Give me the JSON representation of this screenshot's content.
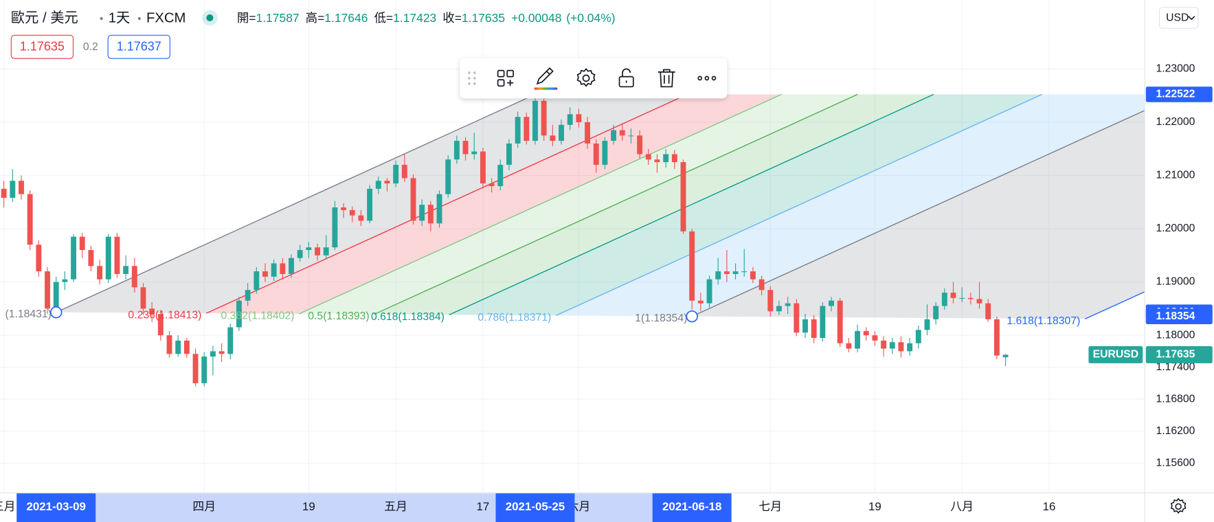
{
  "header": {
    "symbol": "歐元 / 美元",
    "interval": "1天",
    "exchange": "FXCM",
    "open_label": "開=",
    "high_label": "高=",
    "low_label": "低=",
    "close_label": "收=",
    "change": "+0.00048",
    "change_pct": "(+0.04%)",
    "bid": 1.17635,
    "spread": 0.2,
    "ask": 1.17637,
    "currency": "USD"
  },
  "chart_data": {
    "type": "candlestick",
    "ticker": "EURUSD",
    "categories": [
      "三月",
      null,
      null,
      null,
      null,
      null,
      null,
      null,
      null,
      null,
      null,
      null,
      null,
      null,
      null,
      null,
      null,
      null,
      null,
      null,
      null,
      null,
      null,
      "四月",
      null,
      null,
      null,
      null,
      null,
      null,
      null,
      null,
      null,
      null,
      null,
      "19",
      null,
      null,
      null,
      null,
      null,
      null,
      null,
      null,
      null,
      "五月",
      null,
      null,
      null,
      null,
      null,
      null,
      null,
      null,
      null,
      "17",
      null,
      null,
      null,
      null,
      null,
      null,
      null,
      null,
      null,
      null,
      "六月",
      null,
      null,
      null,
      null,
      null,
      null,
      null,
      null,
      null,
      null,
      null,
      null,
      null,
      null,
      null,
      null,
      null,
      null,
      null,
      null,
      null,
      "七月",
      null,
      null,
      null,
      null,
      null,
      null,
      null,
      null,
      null,
      null,
      null,
      "19",
      null,
      null,
      null,
      null,
      null,
      null,
      null,
      null,
      null,
      "八月",
      null,
      null,
      null,
      null,
      null,
      null,
      null,
      null,
      null,
      "16"
    ],
    "open": [
      1.2075,
      1.2058,
      1.209,
      1.2065,
      1.197,
      1.192,
      1.185,
      1.19,
      1.1905,
      1.1985,
      1.196,
      1.193,
      1.1905,
      1.1985,
      1.1915,
      1.193,
      1.189,
      1.185,
      1.184,
      1.18,
      1.1765,
      1.179,
      1.1765,
      1.171,
      1.176,
      1.177,
      1.1765,
      1.1815,
      1.1865,
      1.1885,
      1.192,
      1.191,
      1.1935,
      1.1915,
      1.1945,
      1.196,
      1.1965,
      1.195,
      1.1965,
      1.204,
      1.2035,
      1.2025,
      1.2015,
      1.2075,
      1.209,
      1.2085,
      1.212,
      1.2095,
      1.2015,
      1.2045,
      1.201,
      1.2065,
      1.213,
      1.2165,
      1.214,
      1.2145,
      1.2085,
      1.208,
      1.212,
      1.216,
      1.221,
      1.2165,
      1.224,
      1.2175,
      1.2165,
      1.2195,
      1.2215,
      1.22,
      1.216,
      1.212,
      1.2165,
      1.2185,
      1.2175,
      1.2175,
      1.214,
      1.213,
      1.2125,
      1.214,
      1.2125,
      1.1995,
      1.1865,
      1.186,
      1.1905,
      1.192,
      1.1915,
      1.192,
      1.192,
      1.1905,
      1.1885,
      1.1845,
      1.1855,
      1.186,
      1.1805,
      1.183,
      1.1795,
      1.1855,
      1.1865,
      1.1785,
      1.1775,
      1.1808,
      1.18,
      1.179,
      1.1775,
      1.1787,
      1.177,
      1.1785,
      1.181,
      1.183,
      1.1855,
      1.188,
      1.187,
      1.187,
      1.1868,
      1.186,
      1.183,
      1.17587,
      null,
      null,
      null,
      null,
      null
    ],
    "high": [
      1.209,
      1.2112,
      1.21,
      1.2072,
      1.1978,
      1.1928,
      1.191,
      1.192,
      1.199,
      1.1992,
      1.1968,
      1.1942,
      1.199,
      1.1992,
      1.195,
      1.1945,
      1.1898,
      1.1862,
      1.1848,
      1.1808,
      1.18,
      1.1795,
      1.1775,
      1.1768,
      1.178,
      1.1785,
      1.1822,
      1.1872,
      1.1898,
      1.1928,
      1.1935,
      1.1942,
      1.1945,
      1.1952,
      1.197,
      1.1975,
      1.1972,
      1.1988,
      1.2052,
      1.2048,
      1.2042,
      1.2035,
      1.2082,
      1.2098,
      1.2095,
      1.2128,
      1.214,
      1.2102,
      1.2055,
      1.2052,
      1.2072,
      1.2138,
      1.2175,
      1.2172,
      1.218,
      1.2152,
      1.2095,
      1.213,
      1.2168,
      1.222,
      1.2218,
      1.2252,
      1.2245,
      1.2195,
      1.2205,
      1.2228,
      1.2225,
      1.221,
      1.2168,
      1.2172,
      1.2195,
      1.2198,
      1.2188,
      1.2185,
      1.215,
      1.214,
      1.215,
      1.2148,
      1.213,
      1.2,
      1.188,
      1.1912,
      1.1945,
      1.196,
      1.1935,
      1.1962,
      1.1928,
      1.1912,
      1.1892,
      1.1865,
      1.1872,
      1.1868,
      1.184,
      1.1838,
      1.1862,
      1.1872,
      1.187,
      1.1795,
      1.182,
      1.1815,
      1.1808,
      1.1798,
      1.1795,
      1.1798,
      1.1795,
      1.1818,
      1.1858,
      1.1862,
      1.1888,
      1.19,
      1.189,
      1.188,
      1.19,
      1.1868,
      1.1835,
      1.17646,
      null,
      null,
      null,
      null,
      null
    ],
    "low": [
      1.204,
      1.205,
      1.2055,
      1.196,
      1.191,
      1.184,
      1.1843,
      1.1885,
      1.19,
      1.1945,
      1.192,
      1.1895,
      1.1898,
      1.1908,
      1.1905,
      1.188,
      1.1838,
      1.1825,
      1.179,
      1.1758,
      1.176,
      1.1758,
      1.1704,
      1.1704,
      1.1725,
      1.175,
      1.1755,
      1.1808,
      1.1855,
      1.1878,
      1.19,
      1.1902,
      1.1905,
      1.1908,
      1.1938,
      1.1945,
      1.194,
      1.1942,
      1.196,
      1.202,
      1.2012,
      1.2005,
      1.201,
      1.2065,
      1.207,
      1.2078,
      1.2088,
      1.2008,
      1.2005,
      1.1995,
      1.2002,
      1.2058,
      1.2122,
      1.2128,
      1.213,
      1.2075,
      1.2068,
      1.2072,
      1.211,
      1.2152,
      1.2158,
      1.2158,
      1.2165,
      1.2155,
      1.2158,
      1.2185,
      1.219,
      1.215,
      1.2105,
      1.2112,
      1.2158,
      1.2165,
      1.216,
      1.2132,
      1.212,
      1.2105,
      1.2115,
      1.2112,
      1.199,
      1.1848,
      1.1845,
      1.1852,
      1.1895,
      1.19,
      1.1905,
      1.191,
      1.1898,
      1.1875,
      1.1835,
      1.1838,
      1.184,
      1.1798,
      1.1795,
      1.1785,
      1.1788,
      1.1845,
      1.1778,
      1.1768,
      1.1768,
      1.179,
      1.178,
      1.176,
      1.1765,
      1.1758,
      1.1762,
      1.1775,
      1.18,
      1.182,
      1.1848,
      1.186,
      1.1862,
      1.1858,
      1.185,
      1.1825,
      1.1755,
      1.17423,
      null,
      null,
      null,
      null,
      null
    ],
    "close": [
      1.2058,
      1.209,
      1.2065,
      1.197,
      1.192,
      1.185,
      1.19,
      1.1905,
      1.1985,
      1.196,
      1.193,
      1.1905,
      1.1985,
      1.1915,
      1.193,
      1.189,
      1.185,
      1.184,
      1.18,
      1.1765,
      1.179,
      1.1765,
      1.171,
      1.176,
      1.177,
      1.1765,
      1.1815,
      1.1865,
      1.1885,
      1.192,
      1.191,
      1.1935,
      1.1915,
      1.1945,
      1.196,
      1.1965,
      1.195,
      1.1965,
      1.204,
      1.2035,
      1.2025,
      1.2015,
      1.2075,
      1.209,
      1.2085,
      1.212,
      1.2095,
      1.2015,
      1.2045,
      1.201,
      1.2065,
      1.213,
      1.2165,
      1.214,
      1.2145,
      1.2085,
      1.208,
      1.212,
      1.216,
      1.221,
      1.2165,
      1.224,
      1.2175,
      1.2165,
      1.2195,
      1.2215,
      1.22,
      1.216,
      1.212,
      1.2165,
      1.2185,
      1.2175,
      1.2175,
      1.214,
      1.213,
      1.2125,
      1.214,
      1.2125,
      1.1995,
      1.1865,
      1.186,
      1.1905,
      1.192,
      1.1915,
      1.192,
      1.192,
      1.1905,
      1.1885,
      1.1845,
      1.1855,
      1.186,
      1.1805,
      1.183,
      1.1795,
      1.1855,
      1.1865,
      1.1785,
      1.1775,
      1.1808,
      1.18,
      1.179,
      1.1775,
      1.1787,
      1.177,
      1.1785,
      1.181,
      1.183,
      1.1855,
      1.188,
      1.187,
      1.187,
      1.1868,
      1.186,
      1.183,
      1.1762,
      1.17635,
      null,
      null,
      null,
      null,
      null
    ],
    "up_color": "#26a69a",
    "down_color": "#ef5350",
    "ylim": [
      1.15047,
      1.24294
    ],
    "yticks": [
      {
        "value": 1.23,
        "label": "1.23000"
      },
      {
        "value": 1.22,
        "label": "1.22000"
      },
      {
        "value": 1.21,
        "label": "1.21000"
      },
      {
        "value": 1.2,
        "label": "1.20000"
      },
      {
        "value": 1.19,
        "label": "1.19000"
      },
      {
        "value": 1.18,
        "label": "1.18000"
      },
      {
        "value": 1.174,
        "label": "1.17400"
      },
      {
        "value": 1.168,
        "label": "1.16800"
      },
      {
        "value": 1.162,
        "label": "1.16200"
      },
      {
        "value": 1.156,
        "label": "1.15600"
      }
    ],
    "grid": true,
    "drawing": {
      "type": "fib_channel",
      "anchors": [
        {
          "x": 6,
          "label": "2021-03-09",
          "price": 1.18431
        },
        {
          "x": 79,
          "label": "2021-06-18",
          "price": 1.18354
        },
        {
          "x": 61,
          "label": "2021-05-25",
          "price": 1.22522
        }
      ],
      "levels": [
        {
          "level": 0,
          "label": "(1.18431)",
          "color": "#787b86"
        },
        {
          "level": 0.236,
          "label": "0.236(1.18413)",
          "color": "#f23645"
        },
        {
          "level": 0.382,
          "label": "0.382(1.18402)",
          "color": "#81c784"
        },
        {
          "level": 0.5,
          "label": "0.5(1.18393)",
          "color": "#4caf50"
        },
        {
          "level": 0.618,
          "label": "0.618(1.18384)",
          "color": "#089981"
        },
        {
          "level": 0.786,
          "label": "0.786(1.18371)",
          "color": "#64b5f6"
        },
        {
          "level": 1,
          "label": "1(1.18354)",
          "color": "#787b86"
        },
        {
          "level": 1.618,
          "label": "1.618(1.18307)",
          "color": "#2962ff"
        }
      ]
    }
  }
}
